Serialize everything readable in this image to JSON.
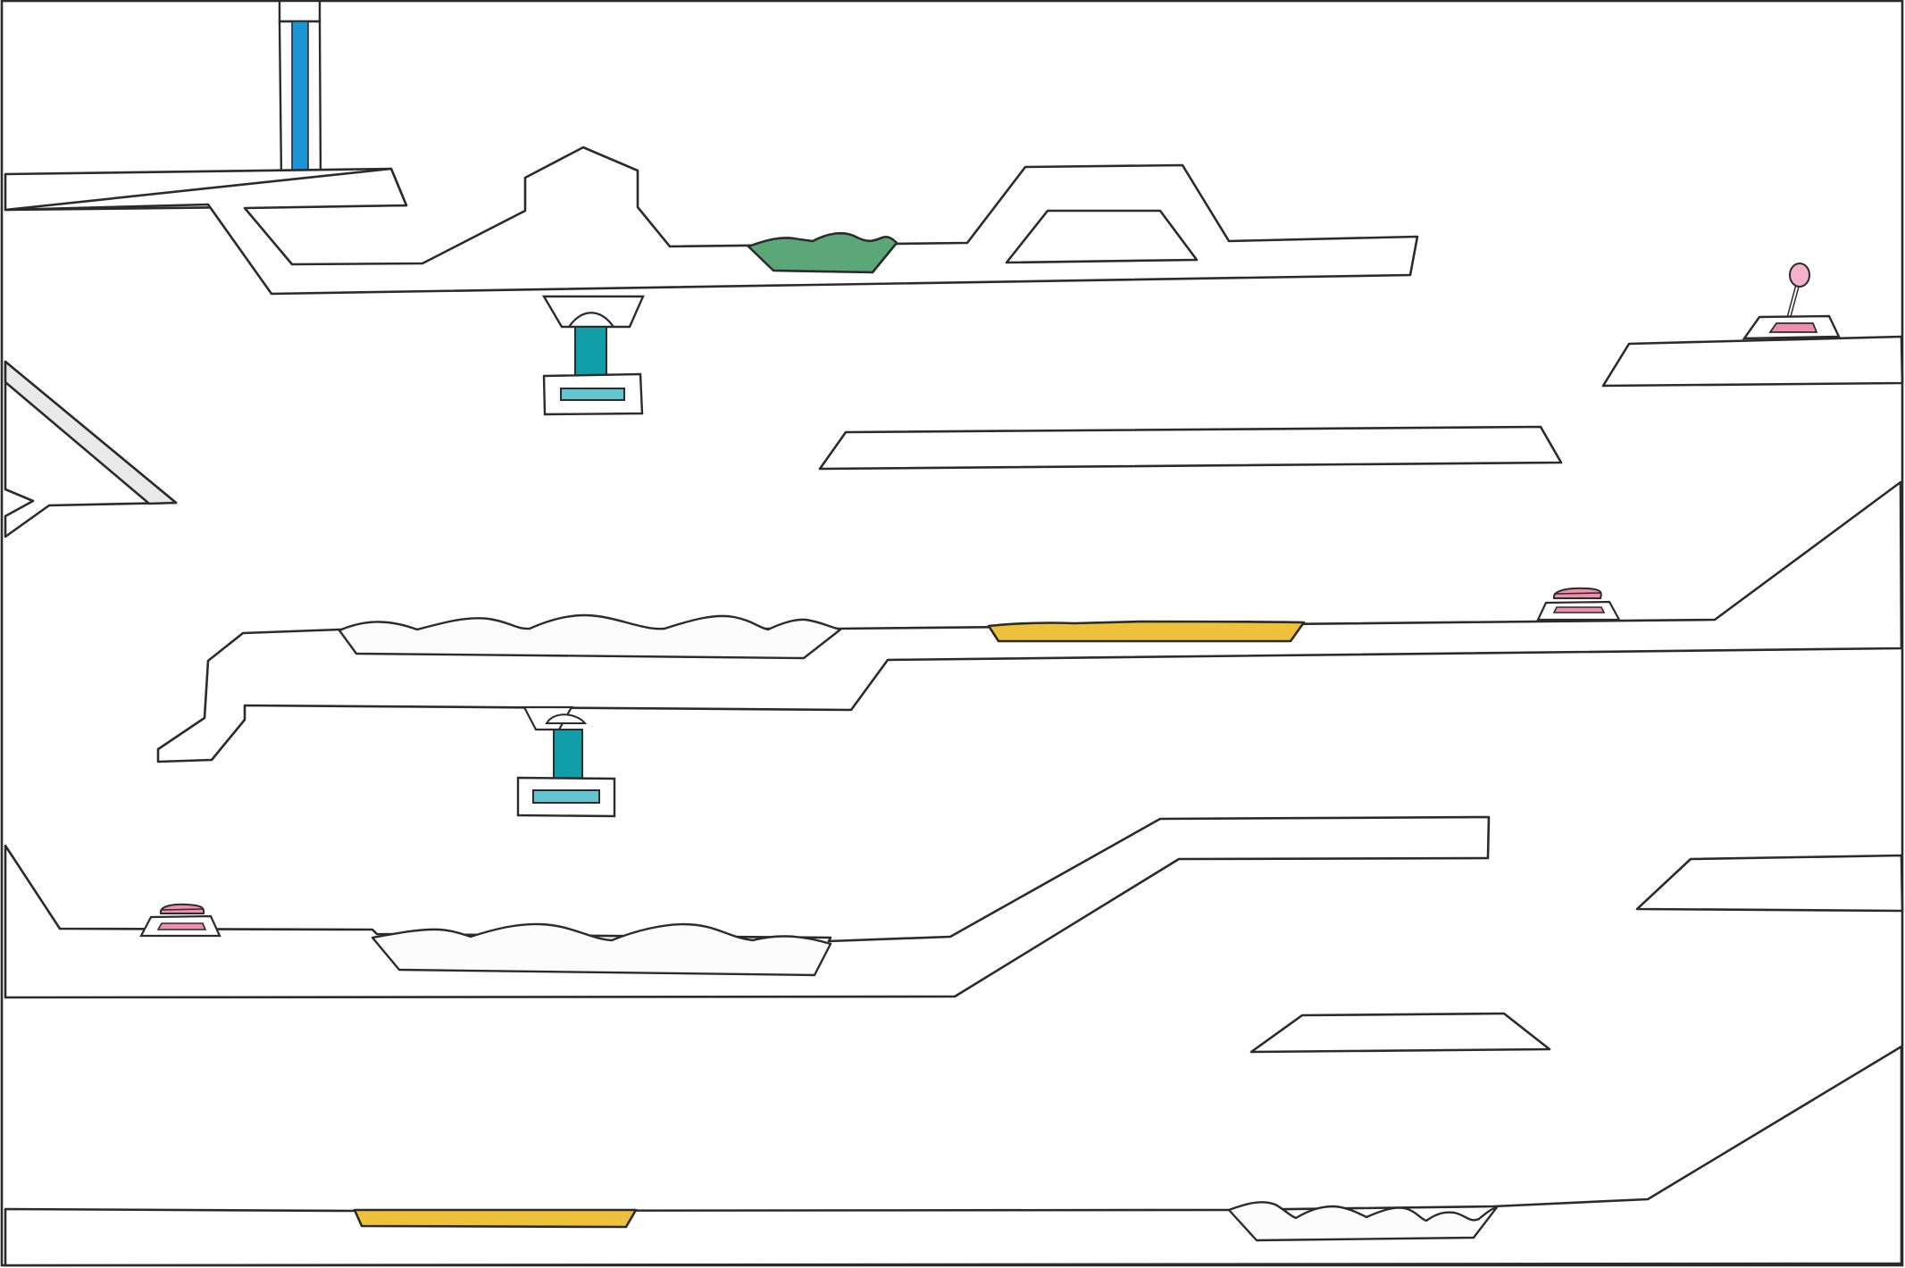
{
  "level": {
    "colors": {
      "background": "#ffffff",
      "outline": "#2b2b2b",
      "water": "#1c94d6",
      "acid": "#5ba778",
      "lava": "#eec13b",
      "elevator": "#129ea8",
      "elevator_pad": "#63c5cf",
      "button": "#ee8fad",
      "lever_knob": "#f6b1cb",
      "ramp": "#e9e9e9"
    },
    "hazards": [
      {
        "type": "acid-pool",
        "color": "acid"
      },
      {
        "type": "lava-pool",
        "color": "lava"
      },
      {
        "type": "lava-pool",
        "color": "lava"
      }
    ],
    "icons": {
      "water_pipe": "water-pipe-icon",
      "elevator": "elevator-icon",
      "button": "pressure-button-icon",
      "lever": "lever-icon"
    }
  }
}
